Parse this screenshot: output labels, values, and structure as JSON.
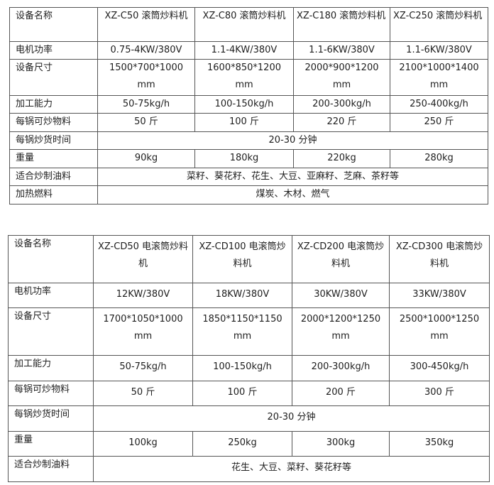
{
  "table1": {
    "header": {
      "label": "设备名称",
      "models": [
        "XZ-C50 滚筒炒料机",
        "XZ-C80 滚筒炒料机",
        "XZ-C180 滚筒炒料机",
        "XZ-C250 滚筒炒料机"
      ]
    },
    "rows": [
      {
        "label": "电机功率",
        "values": [
          "0.75-4KW/380V",
          "1.1-4KW/380V",
          "1.1-6KW/380V",
          "1.1-6KW/380V"
        ]
      },
      {
        "label": "设备尺寸",
        "values": [
          "1500*700*1000 mm",
          "1600*850*1200 mm",
          "2000*900*1200 mm",
          "2100*1000*1400 mm"
        ]
      },
      {
        "label": "加工能力",
        "values": [
          "50-75kg/h",
          "100-150kg/h",
          "200-300kg/h",
          "250-400kg/h"
        ]
      },
      {
        "label": "每锅可炒物料",
        "values": [
          "50 斤",
          "100 斤",
          "220 斤",
          "250 斤"
        ]
      },
      {
        "label": "每锅炒货时间",
        "span": "20-30 分钟"
      },
      {
        "label": "重量",
        "values": [
          "90kg",
          "180kg",
          "220kg",
          "280kg"
        ]
      },
      {
        "label": "适合炒制油料",
        "span": "菜籽、葵花籽、花生、大豆、亚麻籽、芝麻、茶籽等"
      },
      {
        "label": "加热燃料",
        "span": "煤炭、木材、燃气"
      }
    ]
  },
  "table2": {
    "header": {
      "label": "设备名称",
      "models": [
        "XZ-CD50 电滚筒炒料机",
        "XZ-CD100 电滚筒炒料机",
        "XZ-CD200 电滚筒炒料机",
        "XZ-CD300 电滚筒炒料机"
      ]
    },
    "rows": [
      {
        "label": "电机功率",
        "values": [
          "12KW/380V",
          "18KW/380V",
          "30KW/380V",
          "33KW/380V"
        ]
      },
      {
        "label": "设备尺寸",
        "values": [
          "1700*1050*1000 mm",
          "1850*1150*1150 mm",
          "2000*1200*1250 mm",
          "2500*1000*1250 mm"
        ]
      },
      {
        "label": "加工能力",
        "values": [
          "50-75kg/h",
          "100-150kg/h",
          "200-300kg/h",
          "300-450kg/h"
        ]
      },
      {
        "label": "每锅可炒物料",
        "values": [
          "50 斤",
          "100 斤",
          "200 斤",
          "300 斤"
        ]
      },
      {
        "label": "每锅炒货时间",
        "span": "20-30 分钟"
      },
      {
        "label": "重量",
        "values": [
          "100kg",
          "250kg",
          "300kg",
          "350kg"
        ]
      },
      {
        "label": "适合炒制油料",
        "span": "花生、大豆、菜籽、葵花籽等"
      }
    ]
  }
}
